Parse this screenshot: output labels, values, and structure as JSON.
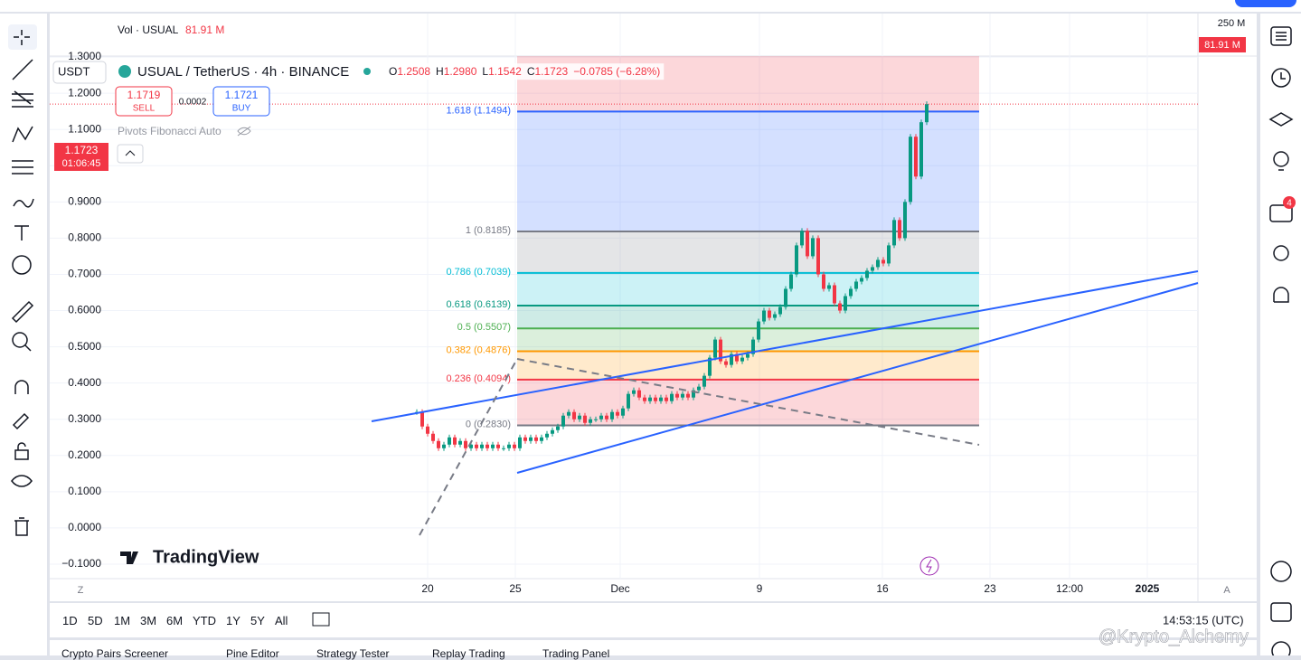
{
  "header": {
    "currency": "USDT",
    "symbol": "USUAL / TetherUS · 4h · BINANCE",
    "ohlc": [
      "O",
      "1.2508",
      "H",
      "1.2980",
      "L",
      "1.1542",
      "C",
      "1.1723",
      "−0.0785 (−6.28%)"
    ],
    "volume": "Vol · USUAL",
    "volume_value": "81.91 M",
    "sell_price": "1.1719",
    "sell": "SELL",
    "spread": "0.0002",
    "buy_price": "1.1721",
    "buy": "BUY",
    "indicator": "Pivots Fibonacci Auto"
  },
  "price_tag": {
    "price": "1.1723",
    "countdown": "01:06:45"
  },
  "volume_axis": {
    "max": "250 M",
    "current": "81.91 M"
  },
  "chart": {
    "ylim": [
      -0.14,
      1.42
    ],
    "yticks": [
      {
        "value": 1.3,
        "label": "1.3000"
      },
      {
        "value": 1.2,
        "label": "1.2000"
      },
      {
        "value": 1.1,
        "label": "1.1000"
      },
      {
        "value": 1.0,
        "label": "1.0000"
      },
      {
        "value": 0.9,
        "label": "0.9000"
      },
      {
        "value": 0.8,
        "label": "0.8000"
      },
      {
        "value": 0.7,
        "label": "0.7000"
      },
      {
        "value": 0.6,
        "label": "0.6000"
      },
      {
        "value": 0.5,
        "label": "0.5000"
      },
      {
        "value": 0.4,
        "label": "0.4000"
      },
      {
        "value": 0.3,
        "label": "0.3000"
      },
      {
        "value": 0.2,
        "label": "0.2000"
      },
      {
        "value": 0.1,
        "label": "0.1000"
      },
      {
        "value": 0,
        "label": "0.0000"
      },
      {
        "value": -0.1,
        "label": "−0.1000"
      }
    ],
    "xlabels": [
      "20",
      "25",
      "Dec",
      "9",
      "16",
      "23",
      "12:00",
      "2025"
    ],
    "closes": [
      0.32,
      0.28,
      0.26,
      0.24,
      0.22,
      0.23,
      0.25,
      0.23,
      0.24,
      0.22,
      0.23,
      0.22,
      0.23,
      0.22,
      0.23,
      0.22,
      0.22,
      0.23,
      0.22,
      0.25,
      0.24,
      0.25,
      0.24,
      0.25,
      0.26,
      0.27,
      0.28,
      0.31,
      0.32,
      0.3,
      0.31,
      0.29,
      0.3,
      0.3,
      0.31,
      0.3,
      0.32,
      0.31,
      0.33,
      0.37,
      0.38,
      0.36,
      0.35,
      0.36,
      0.35,
      0.36,
      0.35,
      0.37,
      0.36,
      0.37,
      0.36,
      0.38,
      0.39,
      0.42,
      0.47,
      0.52,
      0.46,
      0.45,
      0.48,
      0.46,
      0.47,
      0.48,
      0.52,
      0.57,
      0.6,
      0.58,
      0.59,
      0.61,
      0.66,
      0.7,
      0.78,
      0.82,
      0.75,
      0.8,
      0.7,
      0.66,
      0.67,
      0.62,
      0.6,
      0.64,
      0.66,
      0.68,
      0.69,
      0.71,
      0.72,
      0.74,
      0.73,
      0.78,
      0.85,
      0.8,
      0.9,
      1.08,
      0.97,
      1.12,
      1.17
    ],
    "up_color": "#089981",
    "down_color": "#f23645",
    "fib": [
      {
        "label": "1.618 (1.1494)",
        "price": 1.1494,
        "color": "#2962ff"
      },
      {
        "label": "1 (0.8185)",
        "price": 0.8185,
        "color": "#787b86"
      },
      {
        "label": "0.786 (0.7039)",
        "price": 0.7039,
        "color": "#00bcd4"
      },
      {
        "label": "0.618 (0.6139)",
        "price": 0.6139,
        "color": "#089981"
      },
      {
        "label": "0.5 (0.5507)",
        "price": 0.5507,
        "color": "#4caf50"
      },
      {
        "label": "0.382 (0.4876)",
        "price": 0.4876,
        "color": "#ff9800"
      },
      {
        "label": "0.236 (0.4094)",
        "price": 0.4094,
        "color": "#f23645"
      },
      {
        "label": "0 (0.2830)",
        "price": 0.283,
        "color": "#787b86"
      }
    ]
  },
  "timeframes": [
    "1D",
    "5D",
    "1M",
    "3M",
    "6M",
    "YTD",
    "1Y",
    "5Y",
    "All"
  ],
  "clock": "14:53:15 (UTC)",
  "logo": "TradingView",
  "scale_buttons": [
    "Z",
    "A"
  ],
  "alerts_badge": "4",
  "bottom_tabs": [
    "Crypto Pairs Screener",
    "Pine Editor",
    "Strategy Tester",
    "Replay Trading",
    "Trading Panel"
  ],
  "watermark": "@Krypto_Alchemy"
}
